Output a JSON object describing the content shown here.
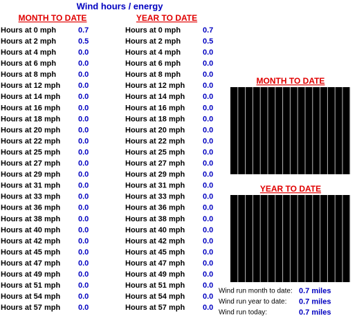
{
  "title": "Wind hours / energy",
  "month": {
    "heading": "MONTH TO DATE",
    "rows": [
      [
        "Hours at 0 mph",
        "0.7"
      ],
      [
        "Hours at 2 mph",
        "0.5"
      ],
      [
        "Hours at 4 mph",
        "0.0"
      ],
      [
        "Hours at 6 mph",
        "0.0"
      ],
      [
        "Hours at 8 mph",
        "0.0"
      ],
      [
        "Hours at 12 mph",
        "0.0"
      ],
      [
        "Hours at 14 mph",
        "0.0"
      ],
      [
        "Hours at 16 mph",
        "0.0"
      ],
      [
        "Hours at 18 mph",
        "0.0"
      ],
      [
        "Hours at 20 mph",
        "0.0"
      ],
      [
        "Hours at 22 mph",
        "0.0"
      ],
      [
        "Hours at 25 mph",
        "0.0"
      ],
      [
        "Hours at 27 mph",
        "0.0"
      ],
      [
        "Hours at 29 mph",
        "0.0"
      ],
      [
        "Hours at 31 mph",
        "0.0"
      ],
      [
        "Hours at 33 mph",
        "0.0"
      ],
      [
        "Hours at 36 mph",
        "0.0"
      ],
      [
        "Hours at 38 mph",
        "0.0"
      ],
      [
        "Hours at 40 mph",
        "0.0"
      ],
      [
        "Hours at 42 mph",
        "0.0"
      ],
      [
        "Hours at 45 mph",
        "0.0"
      ],
      [
        "Hours at 47 mph",
        "0.0"
      ],
      [
        "Hours at 49 mph",
        "0.0"
      ],
      [
        "Hours at 51 mph",
        "0.0"
      ],
      [
        "Hours at 54 mph",
        "0.0"
      ],
      [
        "Hours at 57 mph",
        "0.0"
      ]
    ]
  },
  "year": {
    "heading": "YEAR TO DATE",
    "rows": [
      [
        "Hours at 0 mph",
        "0.7"
      ],
      [
        "Hours at 2 mph",
        "0.5"
      ],
      [
        "Hours at 4 mph",
        "0.0"
      ],
      [
        "Hours at 6 mph",
        "0.0"
      ],
      [
        "Hours at 8 mph",
        "0.0"
      ],
      [
        "Hours at 12 mph",
        "0.0"
      ],
      [
        "Hours at 14 mph",
        "0.0"
      ],
      [
        "Hours at 16 mph",
        "0.0"
      ],
      [
        "Hours at 18 mph",
        "0.0"
      ],
      [
        "Hours at 20 mph",
        "0.0"
      ],
      [
        "Hours at 22 mph",
        "0.0"
      ],
      [
        "Hours at 25 mph",
        "0.0"
      ],
      [
        "Hours at 27 mph",
        "0.0"
      ],
      [
        "Hours at 29 mph",
        "0.0"
      ],
      [
        "Hours at 31 mph",
        "0.0"
      ],
      [
        "Hours at 33 mph",
        "0.0"
      ],
      [
        "Hours at 36 mph",
        "0.0"
      ],
      [
        "Hours at 38 mph",
        "0.0"
      ],
      [
        "Hours at 40 mph",
        "0.0"
      ],
      [
        "Hours at 42 mph",
        "0.0"
      ],
      [
        "Hours at 45 mph",
        "0.0"
      ],
      [
        "Hours at 47 mph",
        "0.0"
      ],
      [
        "Hours at 49 mph",
        "0.0"
      ],
      [
        "Hours at 51 mph",
        "0.0"
      ],
      [
        "Hours at 54 mph",
        "0.0"
      ],
      [
        "Hours at 57 mph",
        "0.0"
      ]
    ]
  },
  "charts": {
    "month_heading": "MONTH TO DATE",
    "year_heading": "YEAR TO DATE"
  },
  "wind_run": [
    [
      "Wind run month to date:",
      "0.7 miles"
    ],
    [
      "Wind run year to date:",
      "0.7 miles"
    ],
    [
      "Wind run today:",
      "0.7 miles"
    ]
  ]
}
